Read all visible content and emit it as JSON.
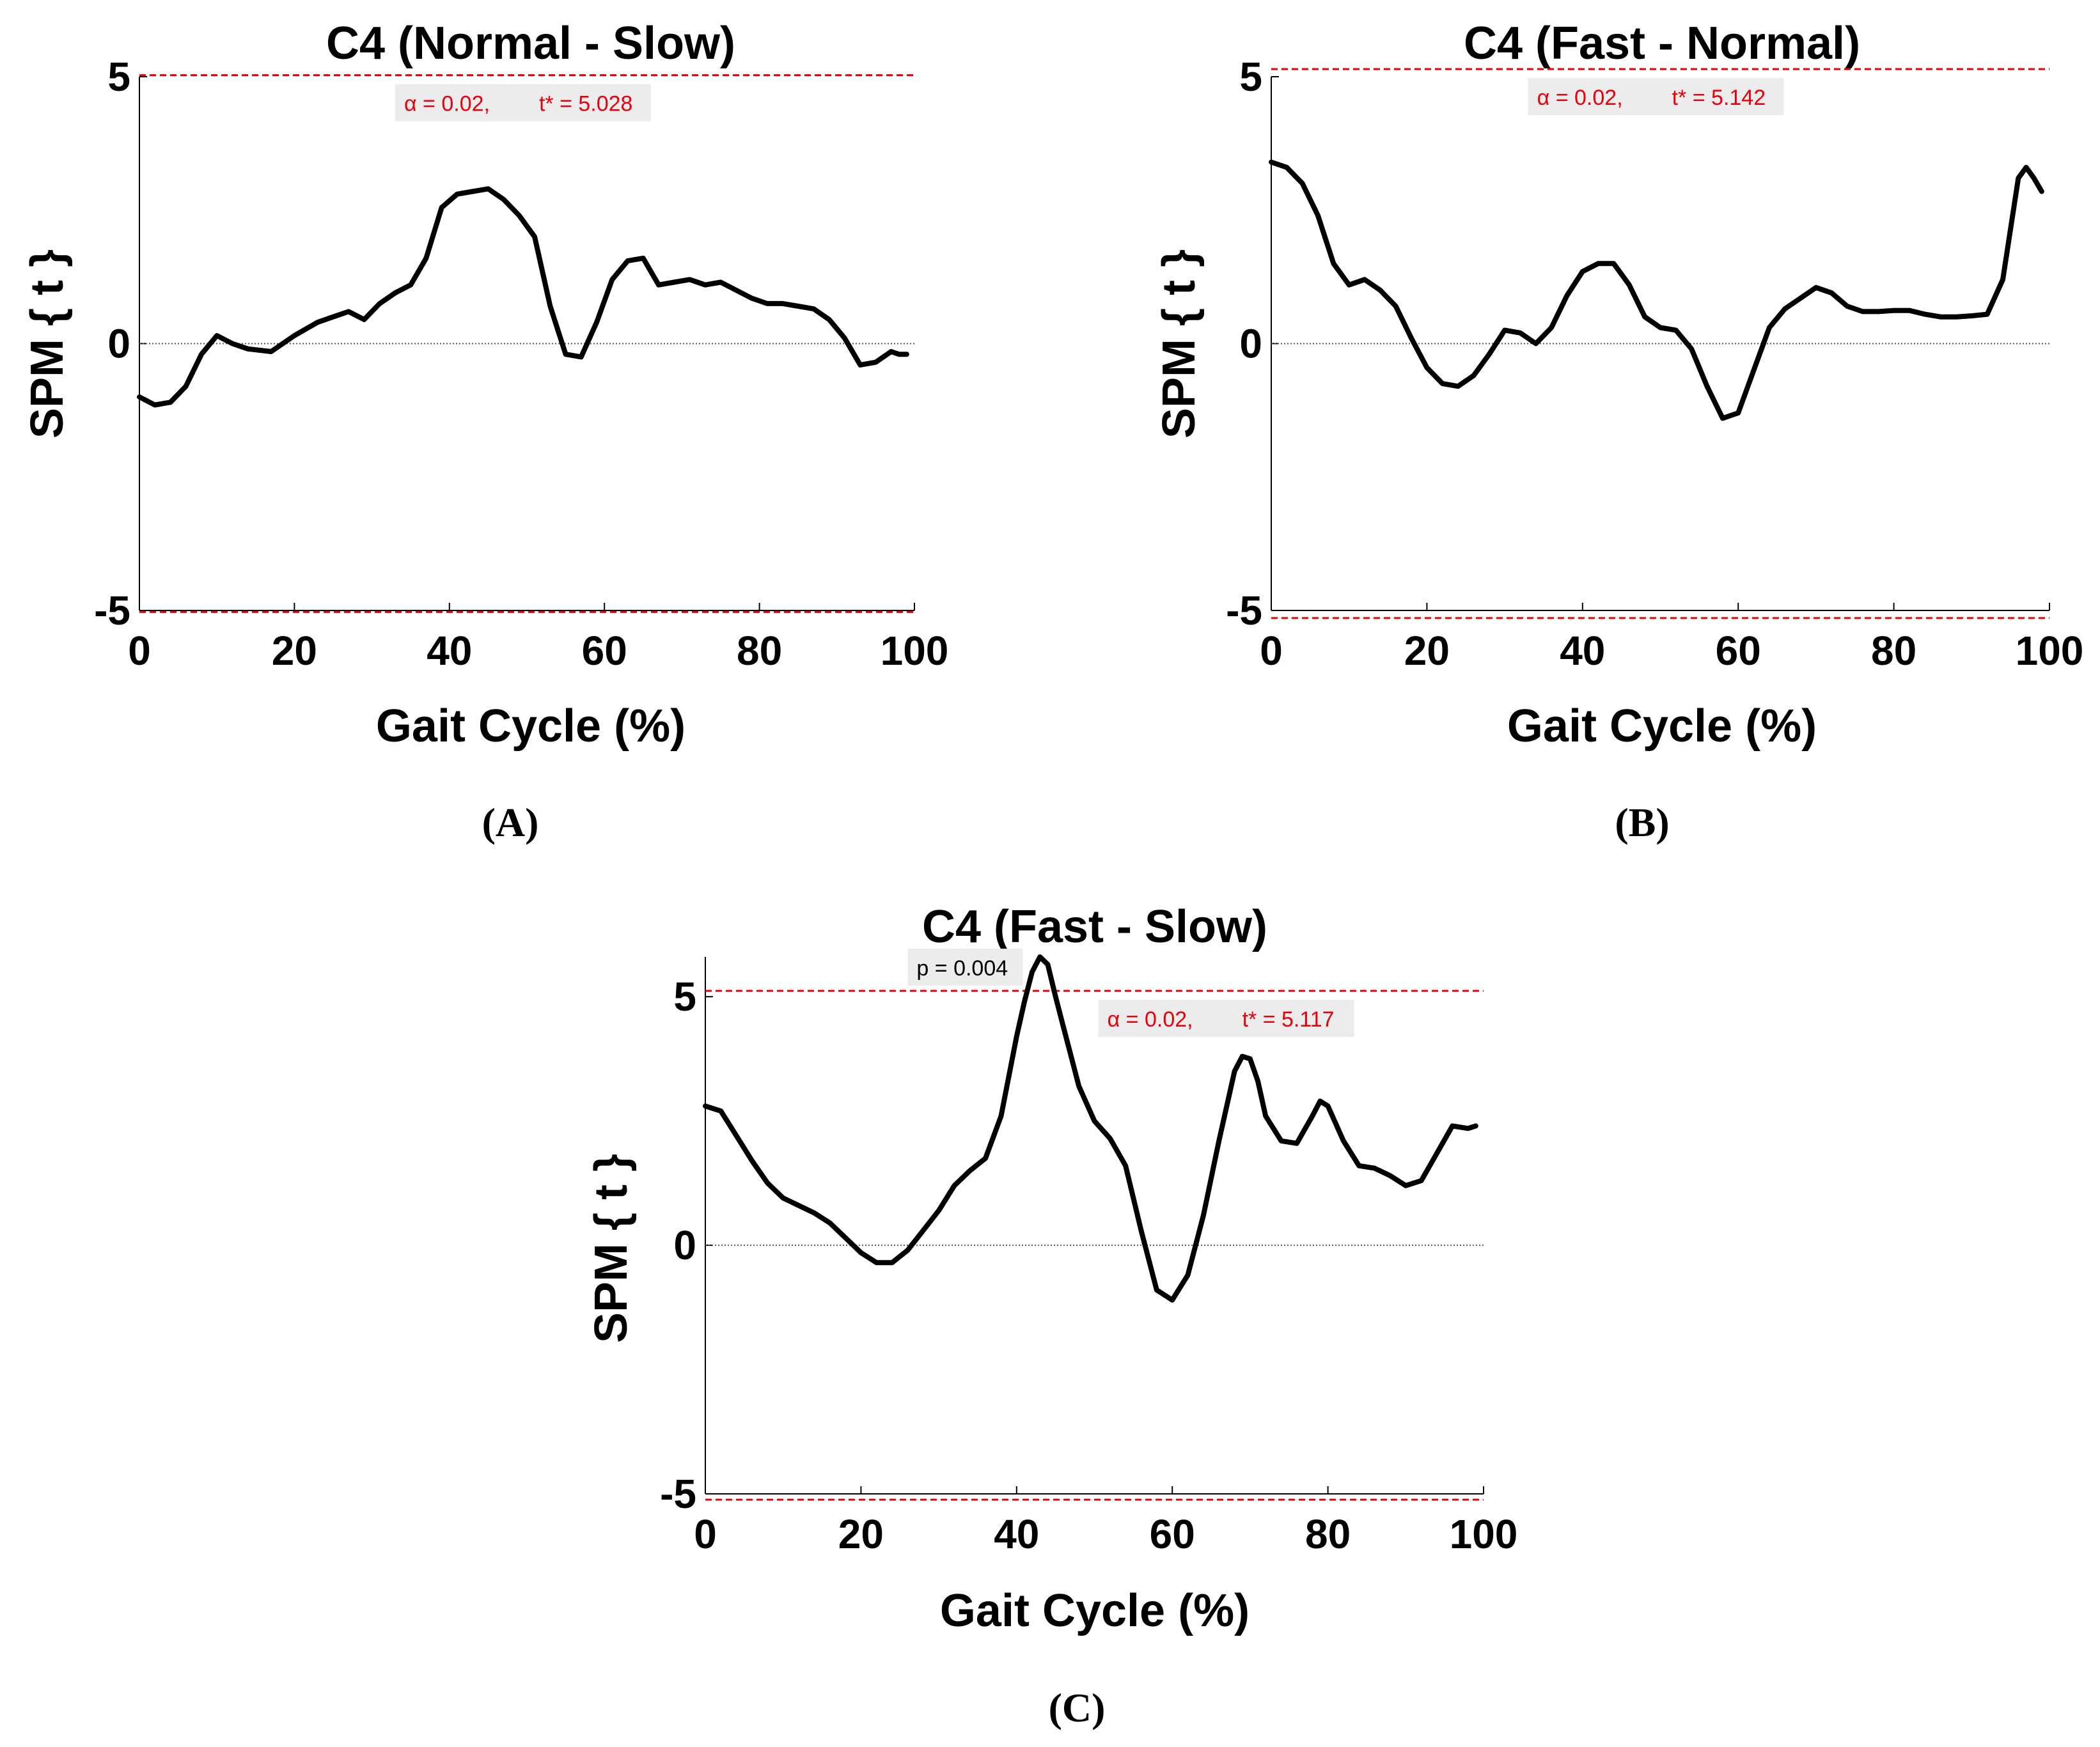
{
  "colors": {
    "curve": "#000000",
    "threshold": "#e8000b",
    "annotation_text": "#e8000b",
    "annotation_bg": "#ececec",
    "zero_line": "#555555"
  },
  "chart_data": [
    {
      "id": "A",
      "type": "line",
      "title": "C4 (Normal - Slow)",
      "xlabel": "Gait Cycle (%)",
      "ylabel": "SPM { t }",
      "caption": "(A)",
      "xlim": [
        0,
        100
      ],
      "ylim": [
        -5,
        5
      ],
      "xticks": [
        "0",
        "20",
        "40",
        "60",
        "80",
        "100"
      ],
      "yticks": [
        "-5",
        "0",
        "5"
      ],
      "threshold": 5.028,
      "alpha_label": "α  = 0.02,",
      "tstar_label": "t* = 5.028",
      "x": [
        0,
        2,
        4,
        6,
        8,
        10,
        12,
        14,
        17,
        20,
        23,
        25,
        27,
        29,
        31,
        33,
        35,
        37,
        39,
        41,
        43,
        45,
        47,
        49,
        51,
        53,
        55,
        57,
        59,
        61,
        63,
        65,
        67,
        69,
        71,
        73,
        75,
        77,
        79,
        81,
        83,
        85,
        87,
        89,
        91,
        93,
        95,
        97,
        98,
        99
      ],
      "y": [
        -1.0,
        -1.15,
        -1.1,
        -0.8,
        -0.2,
        0.15,
        0.0,
        -0.1,
        -0.15,
        0.15,
        0.4,
        0.5,
        0.6,
        0.45,
        0.75,
        0.95,
        1.1,
        1.6,
        2.55,
        2.8,
        2.85,
        2.9,
        2.7,
        2.4,
        2.0,
        0.7,
        -0.2,
        -0.25,
        0.4,
        1.2,
        1.55,
        1.6,
        1.1,
        1.15,
        1.2,
        1.1,
        1.15,
        1.0,
        0.85,
        0.75,
        0.75,
        0.7,
        0.65,
        0.45,
        0.1,
        -0.4,
        -0.35,
        -0.15,
        -0.2,
        -0.2
      ],
      "annotations": []
    },
    {
      "id": "B",
      "type": "line",
      "title": "C4 (Fast - Normal)",
      "xlabel": "Gait Cycle (%)",
      "ylabel": "SPM { t }",
      "caption": "(B)",
      "xlim": [
        0,
        100
      ],
      "ylim": [
        -5,
        5
      ],
      "xticks": [
        "0",
        "20",
        "40",
        "60",
        "80",
        "100"
      ],
      "yticks": [
        "-5",
        "0",
        "5"
      ],
      "threshold": 5.142,
      "alpha_label": "α  = 0.02,",
      "tstar_label": "t* = 5.142",
      "x": [
        0,
        2,
        4,
        6,
        8,
        10,
        12,
        14,
        16,
        18,
        20,
        22,
        24,
        26,
        28,
        30,
        32,
        34,
        36,
        38,
        40,
        42,
        44,
        46,
        48,
        50,
        52,
        54,
        56,
        58,
        60,
        62,
        64,
        66,
        68,
        70,
        72,
        74,
        76,
        78,
        80,
        82,
        84,
        86,
        88,
        90,
        92,
        94,
        96,
        97,
        98,
        99
      ],
      "y": [
        3.4,
        3.3,
        3.0,
        2.4,
        1.5,
        1.1,
        1.2,
        1.0,
        0.7,
        0.1,
        -0.45,
        -0.75,
        -0.8,
        -0.6,
        -0.2,
        0.25,
        0.2,
        0.0,
        0.3,
        0.9,
        1.35,
        1.5,
        1.5,
        1.1,
        0.5,
        0.3,
        0.25,
        -0.1,
        -0.8,
        -1.4,
        -1.3,
        -0.5,
        0.3,
        0.65,
        0.85,
        1.05,
        0.95,
        0.7,
        0.6,
        0.6,
        0.62,
        0.62,
        0.55,
        0.5,
        0.5,
        0.52,
        0.55,
        1.2,
        3.1,
        3.3,
        3.1,
        2.85
      ],
      "annotations": []
    },
    {
      "id": "C",
      "type": "line",
      "title": "C4 (Fast - Slow)",
      "xlabel": "Gait Cycle (%)",
      "ylabel": "SPM { t }",
      "caption": "(C)",
      "xlim": [
        0,
        100
      ],
      "ylim": [
        -5,
        5.8
      ],
      "xticks": [
        "0",
        "20",
        "40",
        "60",
        "80",
        "100"
      ],
      "yticks": [
        "-5",
        "0",
        "5"
      ],
      "threshold": 5.117,
      "alpha_label": "α  = 0.02,",
      "tstar_label": "t* = 5.117",
      "x": [
        0,
        2,
        4,
        6,
        8,
        10,
        12,
        14,
        16,
        18,
        20,
        22,
        24,
        26,
        28,
        30,
        32,
        34,
        36,
        38,
        40,
        41,
        42,
        43,
        44,
        45,
        46,
        48,
        50,
        52,
        54,
        56,
        58,
        60,
        62,
        64,
        66,
        68,
        69,
        70,
        71,
        72,
        74,
        76,
        78,
        79,
        80,
        82,
        84,
        86,
        88,
        90,
        92,
        94,
        96,
        98,
        99
      ],
      "y": [
        2.8,
        2.7,
        2.2,
        1.7,
        1.25,
        0.95,
        0.8,
        0.65,
        0.45,
        0.15,
        -0.15,
        -0.35,
        -0.35,
        -0.1,
        0.3,
        0.7,
        1.2,
        1.5,
        1.75,
        2.6,
        4.2,
        4.9,
        5.5,
        5.8,
        5.65,
        5.0,
        4.4,
        3.2,
        2.5,
        2.15,
        1.6,
        0.3,
        -0.9,
        -1.1,
        -0.6,
        0.6,
        2.1,
        3.5,
        3.8,
        3.75,
        3.3,
        2.6,
        2.1,
        2.05,
        2.6,
        2.9,
        2.8,
        2.1,
        1.6,
        1.55,
        1.4,
        1.2,
        1.3,
        1.85,
        2.4,
        2.35,
        2.4
      ],
      "annotations": [
        {
          "text": "p = 0.004"
        }
      ]
    }
  ]
}
